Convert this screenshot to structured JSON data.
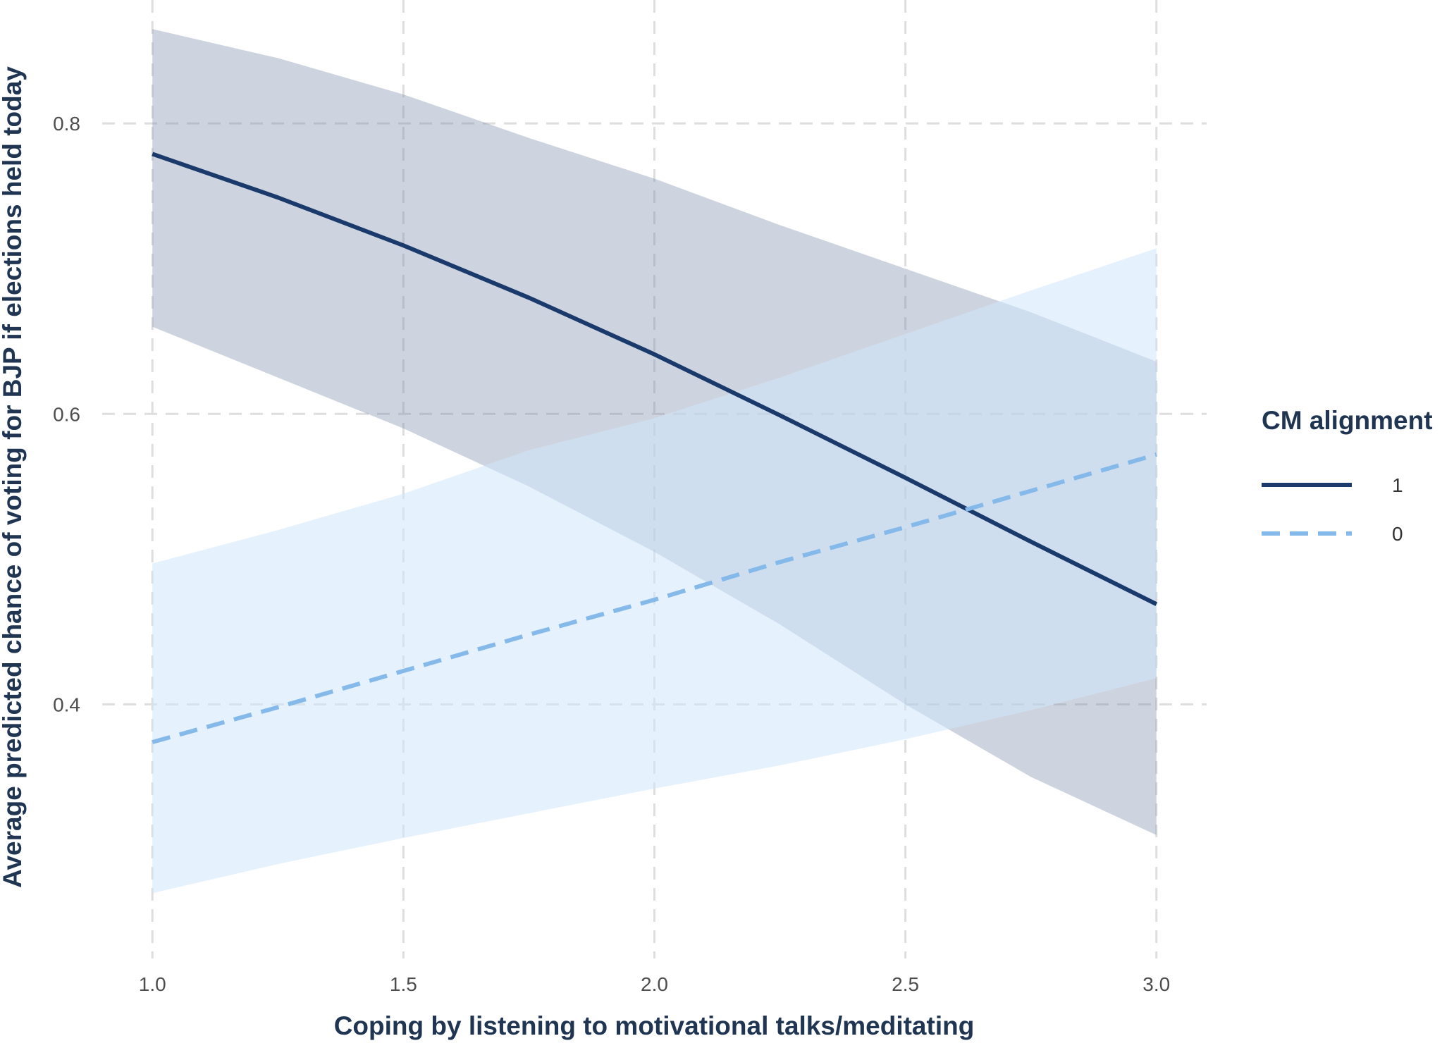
{
  "chart_data": {
    "type": "line",
    "xlabel": "Coping by listening to motivational talks/meditating",
    "ylabel": "Average predicted chance of voting for BJP if elections held today",
    "xlim": [
      0.9,
      3.1
    ],
    "ylim": [
      0.225,
      0.885
    ],
    "x_ticks": [
      1.0,
      1.5,
      2.0,
      2.5,
      3.0
    ],
    "x_tick_labels": [
      "1.0",
      "1.5",
      "2.0",
      "2.5",
      "3.0"
    ],
    "y_ticks": [
      0.4,
      0.6,
      0.8
    ],
    "y_tick_labels": [
      "0.4",
      "0.6",
      "0.8"
    ],
    "grid": true,
    "legend": {
      "title": "CM alignment",
      "position": "right"
    },
    "series": [
      {
        "name": "1",
        "color": "#1a3a6b",
        "ribbon_color": "#7f8fac",
        "linestyle": "solid",
        "x": [
          1.0,
          1.25,
          1.5,
          1.75,
          2.0,
          2.25,
          2.5,
          2.75,
          3.0
        ],
        "y": [
          0.779,
          0.749,
          0.716,
          0.68,
          0.641,
          0.599,
          0.556,
          0.512,
          0.469
        ],
        "lower": [
          0.66,
          0.625,
          0.59,
          0.55,
          0.505,
          0.455,
          0.4,
          0.35,
          0.31
        ],
        "upper": [
          0.865,
          0.845,
          0.82,
          0.79,
          0.762,
          0.73,
          0.7,
          0.67,
          0.636
        ]
      },
      {
        "name": "0",
        "color": "#84b9ea",
        "ribbon_color": "#cfe5fb",
        "linestyle": "dashed",
        "x": [
          1.0,
          1.25,
          1.5,
          1.75,
          2.0,
          2.25,
          2.5,
          2.75,
          3.0
        ],
        "y": [
          0.374,
          0.398,
          0.423,
          0.448,
          0.472,
          0.498,
          0.522,
          0.547,
          0.572
        ],
        "lower": [
          0.27,
          0.29,
          0.308,
          0.325,
          0.342,
          0.358,
          0.376,
          0.396,
          0.418
        ],
        "upper": [
          0.497,
          0.52,
          0.545,
          0.575,
          0.597,
          0.625,
          0.655,
          0.685,
          0.714
        ]
      }
    ]
  }
}
